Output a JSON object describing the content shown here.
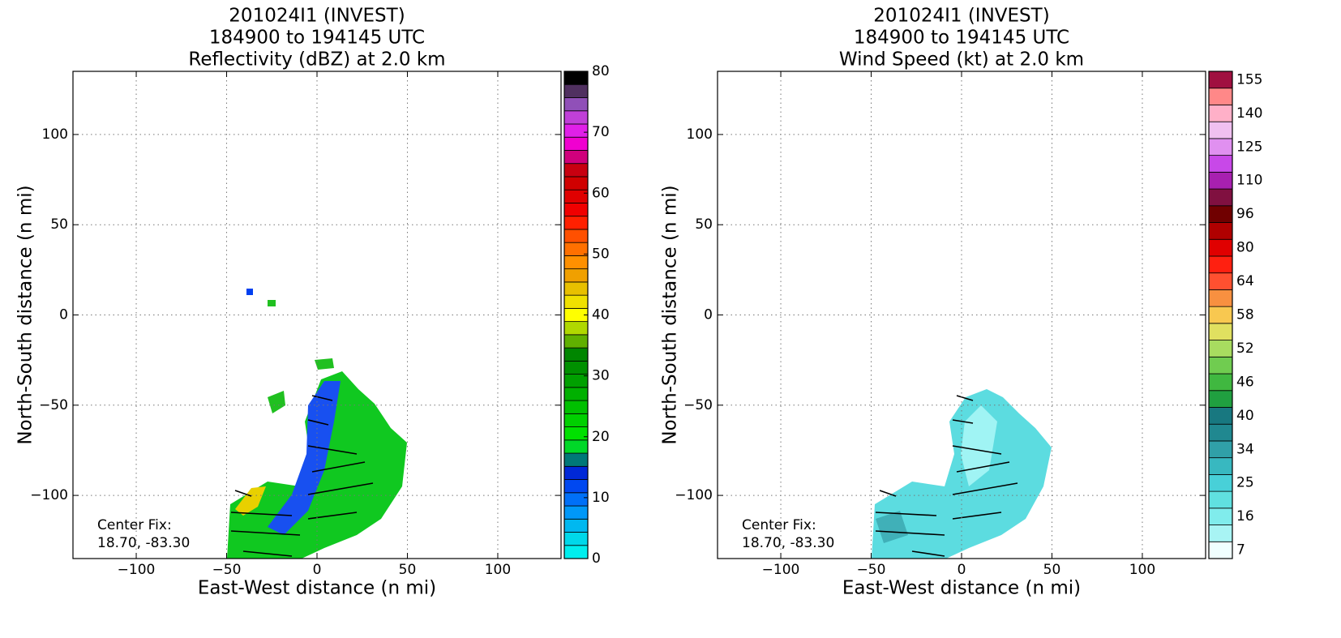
{
  "chart_data": [
    {
      "type": "heatmap",
      "title": [
        "201024I1 (INVEST)",
        "184900 to 194145 UTC",
        "Reflectivity (dBZ) at 2.0 km"
      ],
      "xlabel": "East-West distance (n mi)",
      "ylabel": "North-South distance (n mi)",
      "xlim": [
        -135,
        135
      ],
      "ylim": [
        -135,
        135
      ],
      "xticks": [
        {
          "value": -100,
          "label": "−100"
        },
        {
          "value": -50,
          "label": "−50"
        },
        0,
        50,
        100
      ],
      "yticks": [
        {
          "value": -100,
          "label": "−100"
        },
        {
          "value": -50,
          "label": "−50"
        },
        0,
        50,
        100
      ],
      "grid": true,
      "annotation": [
        "Center Fix:",
        "18.70, -83.30"
      ],
      "colorbar": {
        "lim": [
          0,
          80
        ],
        "ticks": [
          0,
          10,
          20,
          30,
          40,
          50,
          60,
          70,
          80
        ],
        "colors": [
          "#00eeee",
          "#00d8ea",
          "#00b8f0",
          "#0098f8",
          "#0070f8",
          "#0048f0",
          "#0028d8",
          "#007878",
          "#00d828",
          "#00e000",
          "#00d000",
          "#00c000",
          "#00b000",
          "#00a000",
          "#009000",
          "#008600",
          "#60b000",
          "#b0d800",
          "#ffff00",
          "#f0e000",
          "#e8c000",
          "#f0a000",
          "#ff9000",
          "#ff7000",
          "#ff5000",
          "#ff2000",
          "#f00000",
          "#e00000",
          "#d00000",
          "#c80010",
          "#d0007c",
          "#f000d0",
          "#e020e8",
          "#c040d8",
          "#9050b8",
          "#503060",
          "#000000"
        ]
      }
    },
    {
      "type": "heatmap",
      "title": [
        "201024I1 (INVEST)",
        "184900 to 194145 UTC",
        "Wind Speed (kt) at 2.0 km"
      ],
      "xlabel": "East-West distance (n mi)",
      "ylabel": "North-South distance (n mi)",
      "xlim": [
        -135,
        135
      ],
      "ylim": [
        -135,
        135
      ],
      "xticks": [
        {
          "value": -100,
          "label": "−100"
        },
        {
          "value": -50,
          "label": "−50"
        },
        0,
        50,
        100
      ],
      "yticks": [
        {
          "value": -100,
          "label": "−100"
        },
        {
          "value": -50,
          "label": "−50"
        },
        0,
        50,
        100
      ],
      "grid": true,
      "annotation": [
        "Center Fix:",
        "18.70, -83.30"
      ],
      "colorbar": {
        "ticks": [
          7,
          16,
          25,
          34,
          40,
          46,
          52,
          58,
          64,
          80,
          96,
          110,
          125,
          140,
          155
        ],
        "colors": [
          "#f0ffff",
          "#a8f4f4",
          "#80ecec",
          "#60e0e0",
          "#48d0d8",
          "#38b8c0",
          "#30a0a8",
          "#208890",
          "#187880",
          "#20a040",
          "#40b840",
          "#70cc50",
          "#a8dc60",
          "#e0e060",
          "#f8c850",
          "#f89040",
          "#ff5030",
          "#ff2010",
          "#e00000",
          "#b00000",
          "#700000",
          "#801040",
          "#a820b0",
          "#c848e8",
          "#e090f0",
          "#f0c0f0",
          "#ffb0c8",
          "#ff8888",
          "#a01040"
        ]
      }
    }
  ]
}
